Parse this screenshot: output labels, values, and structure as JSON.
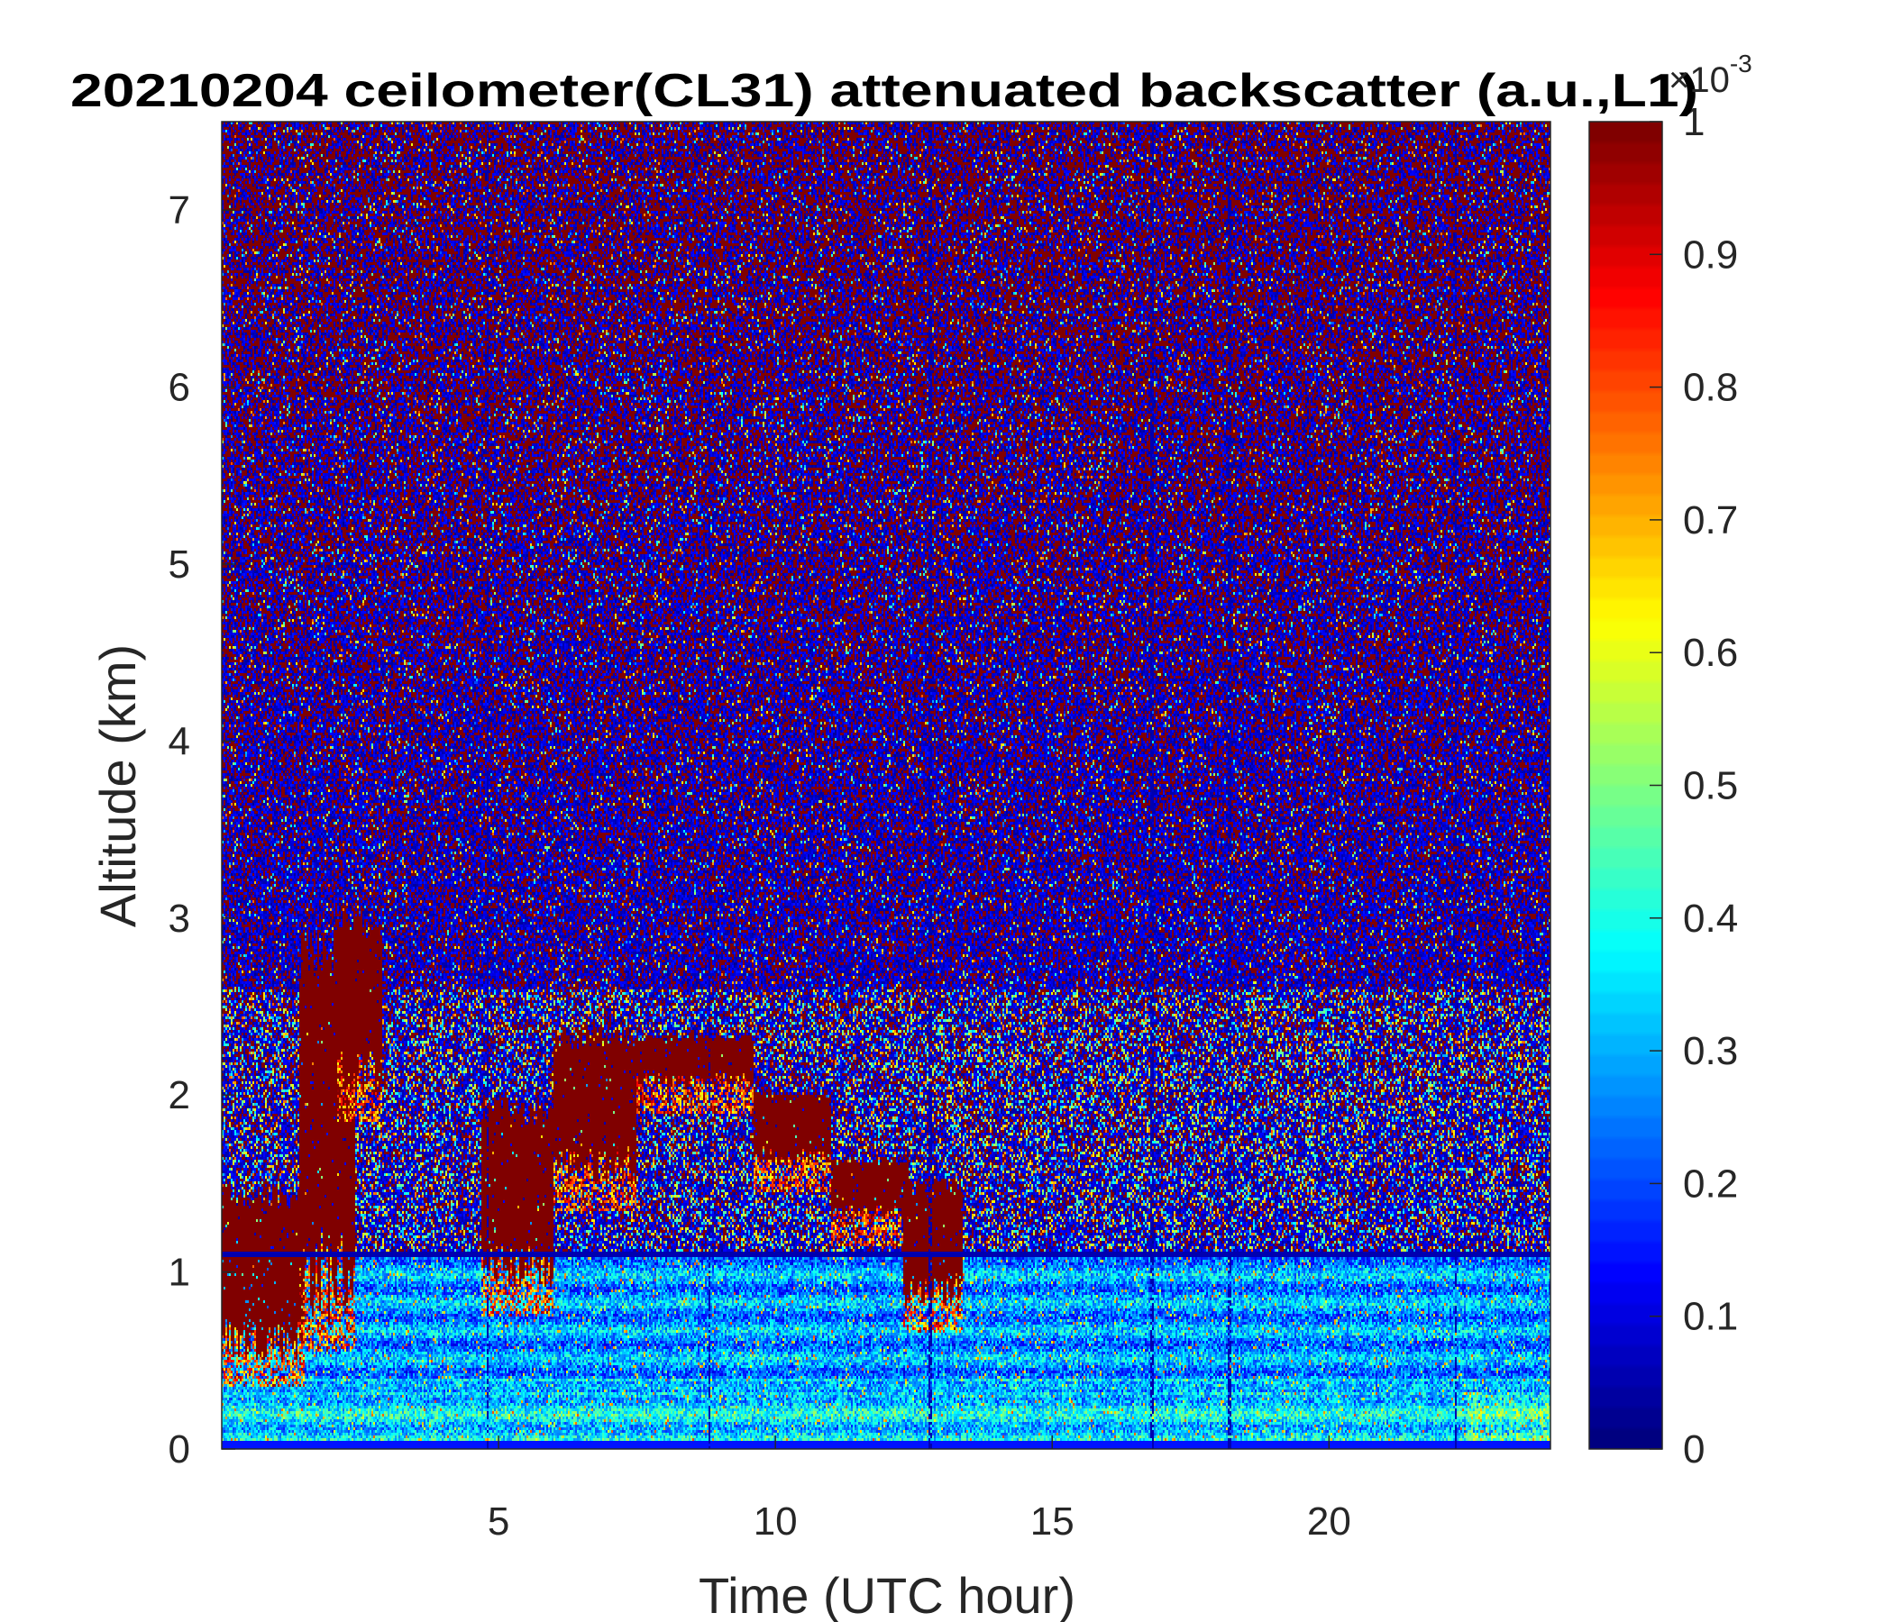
{
  "chart_data": {
    "type": "heatmap",
    "title": "20210204 ceilometer(CL31) attenuated backscatter (a.u.,L1)",
    "xlabel": "Time (UTC hour)",
    "ylabel": "Altitude (km)",
    "xlim": [
      0,
      24
    ],
    "ylim": [
      0,
      7.5
    ],
    "xticks": [
      "5",
      "10",
      "15",
      "20"
    ],
    "yticks": [
      "0",
      "1",
      "2",
      "3",
      "4",
      "5",
      "6",
      "7"
    ],
    "colormap": "jet",
    "colorbar": {
      "range": [
        0,
        1
      ],
      "exponent_label": "×10",
      "exponent": "-3",
      "ticks": [
        "0",
        "0.1",
        "0.2",
        "0.3",
        "0.4",
        "0.5",
        "0.6",
        "0.7",
        "0.8",
        "0.9",
        "1"
      ]
    },
    "boundary_layer_top_km": 1.1,
    "cloud_features": [
      {
        "t_start": 0.0,
        "t_end": 1.5,
        "base_km": 0.5,
        "top_km": 1.5
      },
      {
        "t_start": 1.4,
        "t_end": 2.4,
        "base_km": 0.7,
        "top_km": 3.0
      },
      {
        "t_start": 2.1,
        "t_end": 2.9,
        "base_km": 2.0,
        "top_km": 3.05
      },
      {
        "t_start": 4.7,
        "t_end": 6.0,
        "base_km": 0.9,
        "top_km": 2.0
      },
      {
        "t_start": 6.0,
        "t_end": 7.5,
        "base_km": 1.5,
        "top_km": 2.4
      },
      {
        "t_start": 7.5,
        "t_end": 9.6,
        "base_km": 2.05,
        "top_km": 2.35
      },
      {
        "t_start": 9.6,
        "t_end": 11.0,
        "base_km": 1.6,
        "top_km": 2.05
      },
      {
        "t_start": 11.0,
        "t_end": 12.4,
        "base_km": 1.3,
        "top_km": 1.65
      },
      {
        "t_start": 12.3,
        "t_end": 13.4,
        "base_km": 0.8,
        "top_km": 1.55
      }
    ]
  }
}
